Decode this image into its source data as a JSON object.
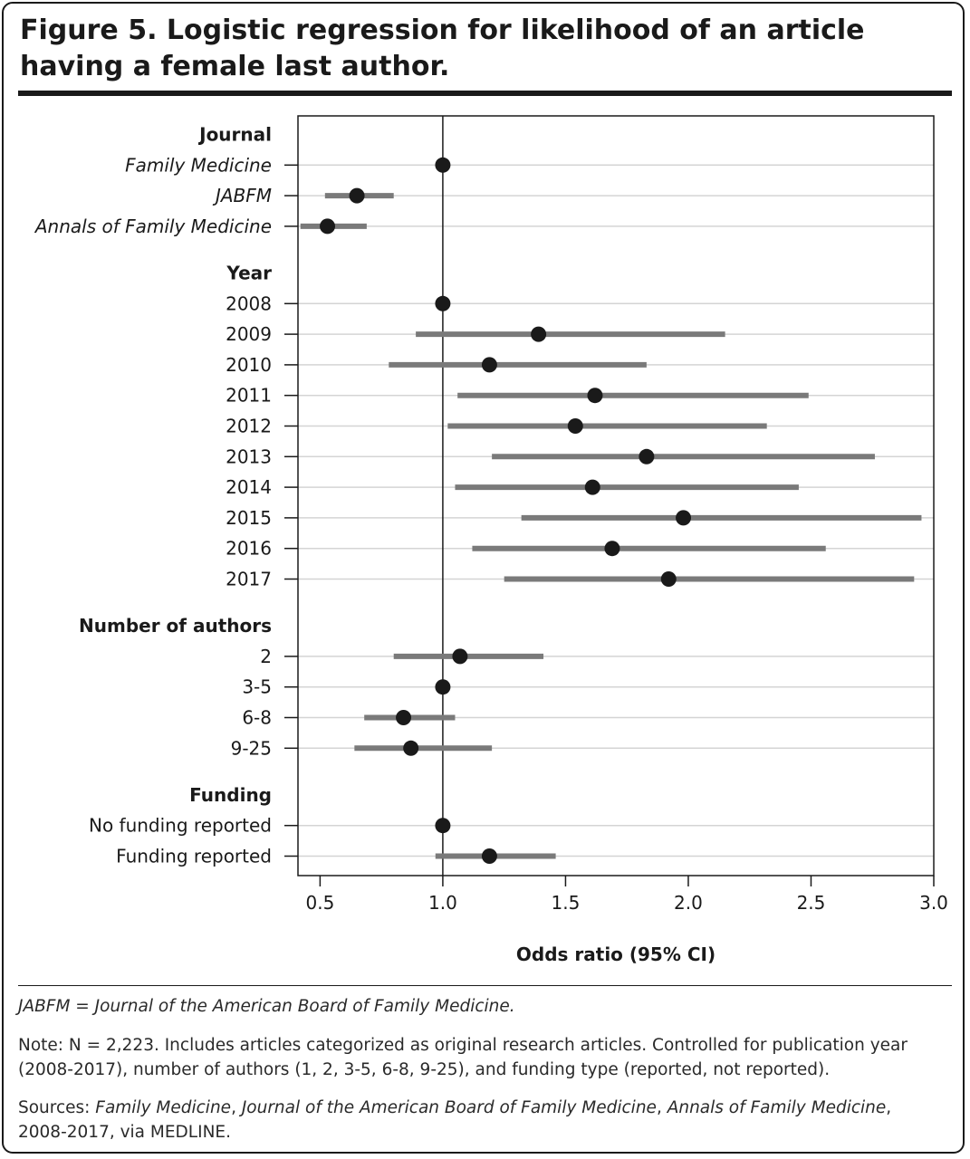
{
  "title": "Figure 5. Logistic regression for likelihood of an article having a female last author.",
  "chart_data": {
    "type": "forest",
    "xlabel": "Odds ratio (95% CI)",
    "xlim": [
      0.41,
      3.0
    ],
    "xticks": [
      "0.5",
      "1.0",
      "1.5",
      "2.0",
      "2.5",
      "3.0"
    ],
    "reference_line": 1.0,
    "groups": [
      {
        "header": "Journal",
        "rows": [
          {
            "label": "Family Medicine",
            "italic": true,
            "or": 1.0,
            "lo": null,
            "hi": null
          },
          {
            "label": "JABFM",
            "italic": true,
            "or": 0.65,
            "lo": 0.52,
            "hi": 0.8
          },
          {
            "label": "Annals of Family Medicine",
            "italic": true,
            "or": 0.53,
            "lo": 0.42,
            "hi": 0.69
          }
        ]
      },
      {
        "header": "Year",
        "rows": [
          {
            "label": "2008",
            "or": 1.0,
            "lo": null,
            "hi": null
          },
          {
            "label": "2009",
            "or": 1.39,
            "lo": 0.89,
            "hi": 2.15
          },
          {
            "label": "2010",
            "or": 1.19,
            "lo": 0.78,
            "hi": 1.83
          },
          {
            "label": "2011",
            "or": 1.62,
            "lo": 1.06,
            "hi": 2.49
          },
          {
            "label": "2012",
            "or": 1.54,
            "lo": 1.02,
            "hi": 2.32
          },
          {
            "label": "2013",
            "or": 1.83,
            "lo": 1.2,
            "hi": 2.76
          },
          {
            "label": "2014",
            "or": 1.61,
            "lo": 1.05,
            "hi": 2.45
          },
          {
            "label": "2015",
            "or": 1.98,
            "lo": 1.32,
            "hi": 2.95
          },
          {
            "label": "2016",
            "or": 1.69,
            "lo": 1.12,
            "hi": 2.56
          },
          {
            "label": "2017",
            "or": 1.92,
            "lo": 1.25,
            "hi": 2.92
          }
        ]
      },
      {
        "header": "Number of authors",
        "rows": [
          {
            "label": "2",
            "or": 1.07,
            "lo": 0.8,
            "hi": 1.41
          },
          {
            "label": "3-5",
            "or": 1.0,
            "lo": null,
            "hi": null
          },
          {
            "label": "6-8",
            "or": 0.84,
            "lo": 0.68,
            "hi": 1.05
          },
          {
            "label": "9-25",
            "or": 0.87,
            "lo": 0.64,
            "hi": 1.2
          }
        ]
      },
      {
        "header": "Funding",
        "rows": [
          {
            "label": "No funding reported",
            "or": 1.0,
            "lo": null,
            "hi": null
          },
          {
            "label": "Funding reported",
            "or": 1.19,
            "lo": 0.97,
            "hi": 1.46
          }
        ]
      }
    ],
    "colors": {
      "point": "#1a1a1a",
      "ci": "#7a7a7a",
      "grid": "#d4d4d4",
      "axis": "#1a1a1a"
    }
  },
  "footnotes": {
    "abbreviation": "JABFM = Journal of the American Board of Family Medicine.",
    "note": "Note: N = 2,223. Includes articles categorized as original research articles. Controlled for publication year (2008-2017), number of authors (1, 2, 3-5, 6-8, 9-25), and funding type (reported, not reported).",
    "sources_prefix": "Sources: ",
    "sources_fm": "Family Medicine",
    "sep": ", ",
    "sources_jabfm": "Journal of the American Board of Family Medicine",
    "sources_afm": "Annals of Family Medicine",
    "sources_suffix": ", 2008-2017, via MEDLINE."
  }
}
